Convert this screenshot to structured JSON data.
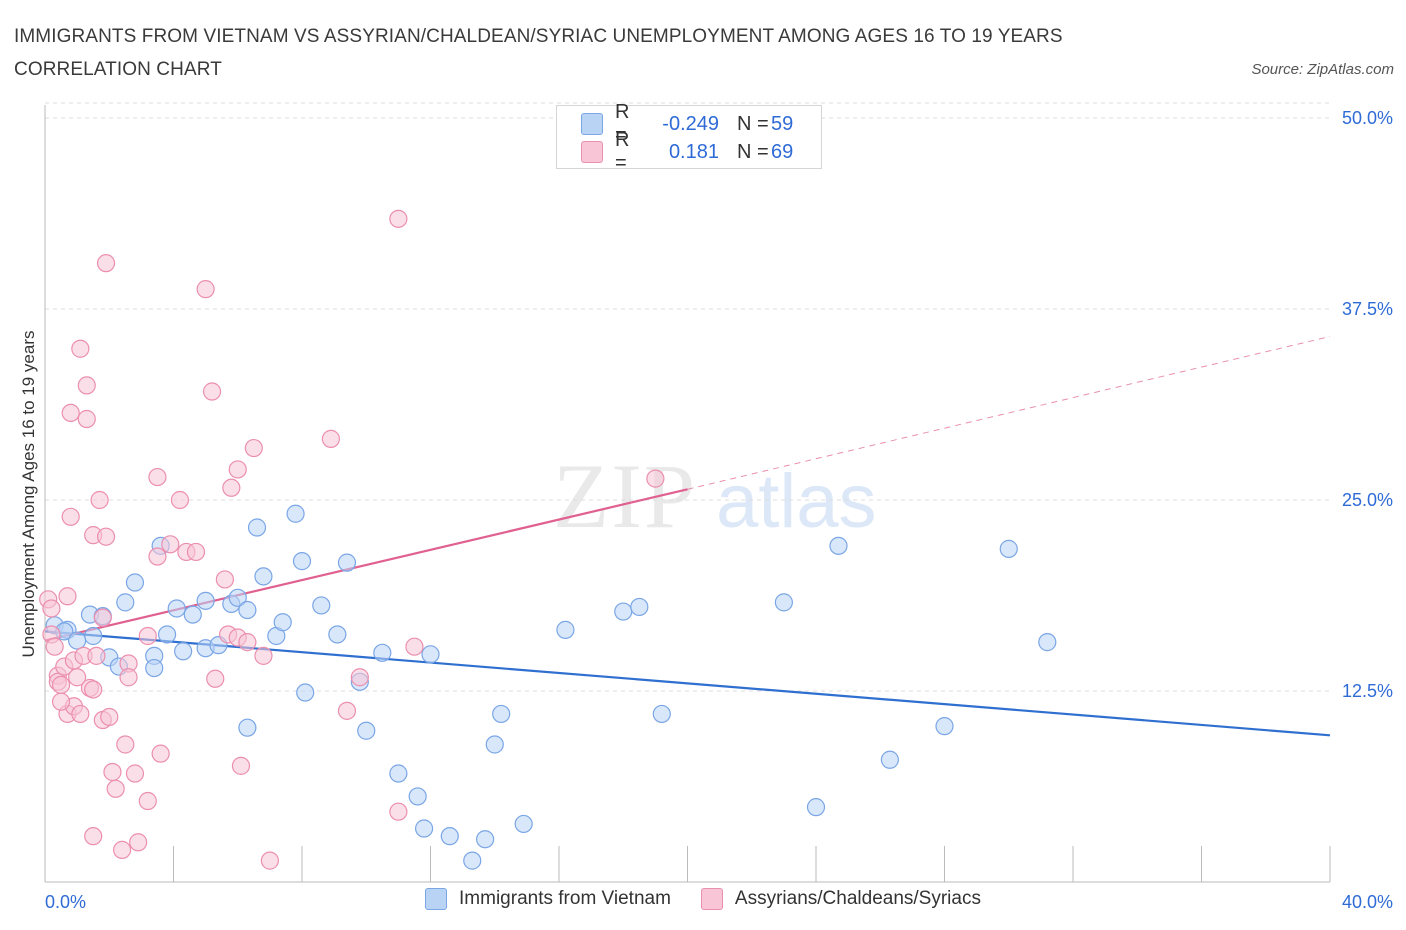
{
  "title": "IMMIGRANTS FROM VIETNAM VS ASSYRIAN/CHALDEAN/SYRIAC UNEMPLOYMENT AMONG AGES 16 TO 19 YEARS CORRELATION CHART",
  "source": "Source: ZipAtlas.com",
  "watermark": {
    "zip": "ZIP",
    "atlas": "atlas"
  },
  "colors": {
    "blue_fill": "#b9d3f5",
    "blue_stroke": "#7aa6e6",
    "blue_line": "#2f6fd0",
    "pink_fill": "#f7c5d5",
    "pink_stroke": "#eb8fae",
    "pink_line": "#e06090",
    "grid": "#dddddd",
    "axis_text": "#2f6bd6"
  },
  "legend_top": [
    {
      "r_label": "R =",
      "r_value": "-0.249",
      "n_label": "N =",
      "n_value": "59"
    },
    {
      "r_label": "R =",
      "r_value": "0.181",
      "n_label": "N =",
      "n_value": "69"
    }
  ],
  "chart_data": {
    "type": "scatter",
    "title": "IMMIGRANTS FROM VIETNAM VS ASSYRIAN/CHALDEAN/SYRIAC UNEMPLOYMENT AMONG AGES 16 TO 19 YEARS CORRELATION CHART",
    "xlabel": "",
    "ylabel": "Unemployment Among Ages 16 to 19 years",
    "xlim": [
      0,
      40
    ],
    "ylim": [
      0,
      50
    ],
    "x_tick_labels": [
      "0.0%",
      "40.0%"
    ],
    "y_ticks": [
      12.5,
      25.0,
      37.5,
      50.0
    ],
    "y_tick_labels": [
      "12.5%",
      "25.0%",
      "37.5%",
      "50.0%"
    ],
    "grid": true,
    "legend_position": "bottom",
    "series": [
      {
        "name": "Immigrants from Vietnam",
        "color": "#7aa6e6",
        "trend": {
          "x0": 0,
          "y0": 16.4,
          "x1": 40,
          "y1": 9.6
        },
        "points": [
          [
            0.3,
            16.8
          ],
          [
            0.7,
            16.5
          ],
          [
            0.6,
            16.4
          ],
          [
            1.4,
            17.5
          ],
          [
            1.5,
            16.1
          ],
          [
            1.0,
            15.8
          ],
          [
            1.8,
            17.4
          ],
          [
            2.8,
            19.6
          ],
          [
            2.5,
            18.3
          ],
          [
            2.0,
            14.7
          ],
          [
            2.3,
            14.1
          ],
          [
            3.4,
            14.8
          ],
          [
            3.4,
            14.0
          ],
          [
            3.6,
            22.0
          ],
          [
            3.8,
            16.2
          ],
          [
            4.1,
            17.9
          ],
          [
            4.3,
            15.1
          ],
          [
            4.6,
            17.5
          ],
          [
            5.0,
            15.3
          ],
          [
            5.0,
            18.4
          ],
          [
            5.4,
            15.5
          ],
          [
            5.8,
            18.2
          ],
          [
            6.0,
            18.6
          ],
          [
            6.3,
            17.8
          ],
          [
            6.6,
            23.2
          ],
          [
            6.8,
            20.0
          ],
          [
            7.2,
            16.1
          ],
          [
            7.4,
            17.0
          ],
          [
            7.8,
            24.1
          ],
          [
            8.0,
            21.0
          ],
          [
            8.1,
            12.4
          ],
          [
            8.6,
            18.1
          ],
          [
            9.1,
            16.2
          ],
          [
            9.4,
            20.9
          ],
          [
            9.8,
            13.1
          ],
          [
            10.0,
            9.9
          ],
          [
            10.5,
            15.0
          ],
          [
            11.0,
            7.1
          ],
          [
            11.6,
            5.6
          ],
          [
            11.8,
            3.5
          ],
          [
            12.0,
            14.9
          ],
          [
            12.6,
            3.0
          ],
          [
            13.3,
            1.4
          ],
          [
            13.7,
            2.8
          ],
          [
            14.0,
            9.0
          ],
          [
            14.2,
            11.0
          ],
          [
            14.9,
            3.8
          ],
          [
            6.3,
            10.1
          ],
          [
            16.2,
            16.5
          ],
          [
            18.0,
            17.7
          ],
          [
            18.5,
            18.0
          ],
          [
            19.2,
            11.0
          ],
          [
            23.0,
            18.3
          ],
          [
            24.0,
            4.9
          ],
          [
            24.7,
            22.0
          ],
          [
            26.3,
            8.0
          ],
          [
            28.0,
            10.2
          ],
          [
            30.0,
            21.8
          ],
          [
            31.2,
            15.7
          ]
        ]
      },
      {
        "name": "Assyrians/Chaldeans/Syriacs",
        "color": "#eb8fae",
        "trend": {
          "x0": 0,
          "y0": 15.8,
          "x1": 20,
          "y1": 25.7,
          "dash_x1": 40,
          "dash_y1": 35.7
        },
        "points": [
          [
            0.1,
            18.5
          ],
          [
            0.2,
            17.9
          ],
          [
            0.2,
            16.2
          ],
          [
            0.3,
            15.4
          ],
          [
            0.4,
            13.5
          ],
          [
            0.4,
            13.1
          ],
          [
            0.5,
            12.9
          ],
          [
            0.6,
            14.1
          ],
          [
            0.7,
            11.0
          ],
          [
            0.7,
            18.7
          ],
          [
            0.9,
            11.5
          ],
          [
            0.8,
            23.9
          ],
          [
            0.8,
            30.7
          ],
          [
            0.9,
            14.5
          ],
          [
            1.0,
            13.4
          ],
          [
            1.1,
            11.0
          ],
          [
            1.1,
            34.9
          ],
          [
            1.2,
            14.8
          ],
          [
            1.3,
            32.5
          ],
          [
            1.3,
            30.3
          ],
          [
            1.4,
            12.7
          ],
          [
            1.5,
            22.7
          ],
          [
            1.5,
            12.6
          ],
          [
            1.5,
            3.0
          ],
          [
            1.6,
            14.8
          ],
          [
            1.7,
            25.0
          ],
          [
            1.8,
            10.6
          ],
          [
            1.8,
            17.3
          ],
          [
            1.9,
            22.6
          ],
          [
            1.9,
            40.5
          ],
          [
            2.0,
            10.8
          ],
          [
            2.1,
            7.2
          ],
          [
            2.2,
            6.1
          ],
          [
            2.4,
            2.1
          ],
          [
            2.5,
            9.0
          ],
          [
            2.6,
            14.3
          ],
          [
            2.6,
            13.4
          ],
          [
            2.8,
            7.1
          ],
          [
            2.9,
            2.6
          ],
          [
            3.2,
            5.3
          ],
          [
            3.2,
            16.1
          ],
          [
            3.5,
            21.3
          ],
          [
            3.5,
            26.5
          ],
          [
            3.6,
            8.4
          ],
          [
            3.9,
            22.1
          ],
          [
            4.2,
            25.0
          ],
          [
            4.4,
            21.6
          ],
          [
            4.7,
            21.6
          ],
          [
            5.0,
            38.8
          ],
          [
            5.2,
            32.1
          ],
          [
            5.3,
            13.3
          ],
          [
            5.6,
            19.8
          ],
          [
            5.7,
            16.2
          ],
          [
            5.8,
            25.8
          ],
          [
            6.0,
            27.0
          ],
          [
            6.0,
            16.0
          ],
          [
            6.1,
            7.6
          ],
          [
            6.3,
            15.7
          ],
          [
            6.5,
            28.4
          ],
          [
            6.8,
            14.8
          ],
          [
            7.0,
            1.4
          ],
          [
            8.9,
            29.0
          ],
          [
            9.4,
            11.2
          ],
          [
            9.8,
            13.4
          ],
          [
            11.0,
            4.6
          ],
          [
            11.0,
            43.4
          ],
          [
            11.5,
            15.4
          ],
          [
            19.0,
            26.4
          ],
          [
            0.5,
            11.8
          ]
        ]
      }
    ]
  },
  "legend_bottom": [
    {
      "label": "Immigrants from Vietnam"
    },
    {
      "label": "Assyrians/Chaldeans/Syriacs"
    }
  ]
}
